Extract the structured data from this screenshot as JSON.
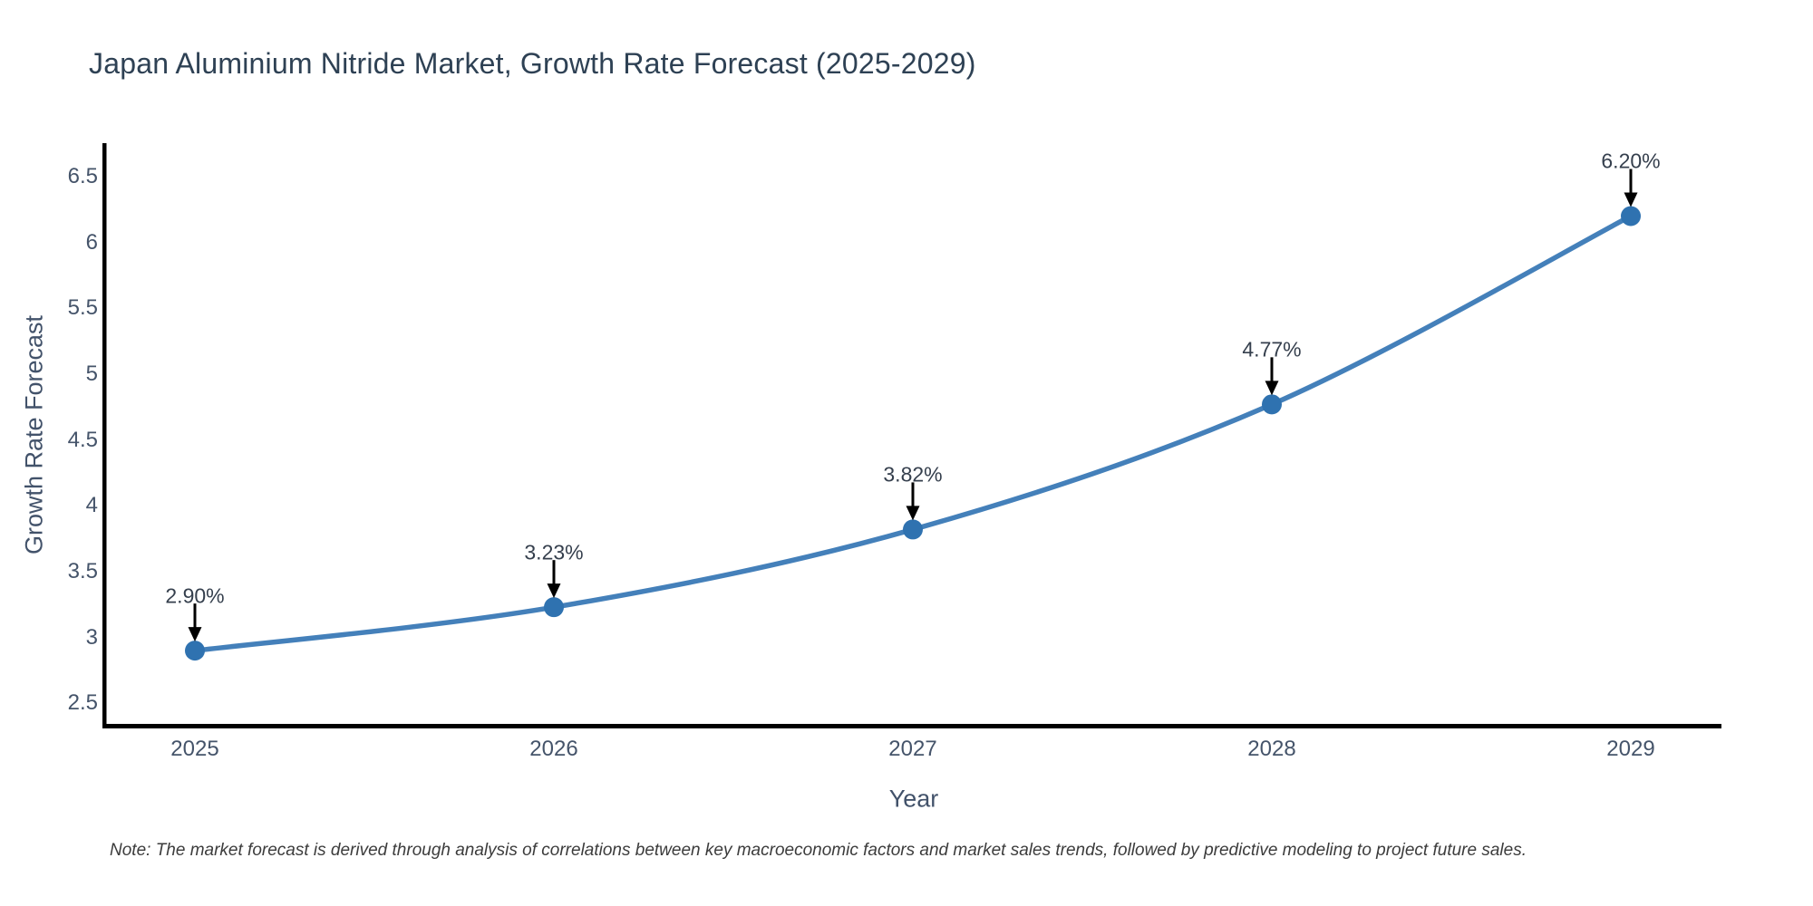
{
  "header": {
    "title": "Japan Aluminium Nitride Market, Growth Rate Forecast (2025-2029)"
  },
  "footer": {
    "note": "Note: The market forecast is derived through analysis of correlations between key macroeconomic factors and market sales trends, followed by predictive modeling to project future sales."
  },
  "chart_data": {
    "type": "line",
    "title": "Japan Aluminium Nitride Market, Growth Rate Forecast (2025-2029)",
    "xlabel": "Year",
    "ylabel": "Growth Rate Forecast",
    "x": [
      2025,
      2026,
      2027,
      2028,
      2029
    ],
    "series": [
      {
        "name": "Growth Rate Forecast",
        "values": [
          2.9,
          3.23,
          3.82,
          4.77,
          6.2
        ]
      }
    ],
    "point_labels": [
      "2.90%",
      "3.23%",
      "3.82%",
      "4.77%",
      "6.20%"
    ],
    "x_tick_labels": [
      "2025",
      "2026",
      "2027",
      "2028",
      "2029"
    ],
    "y_ticks": [
      2.5,
      3,
      3.5,
      4,
      4.5,
      5,
      5.5,
      6,
      6.5
    ],
    "y_tick_labels": [
      "2.5",
      "3",
      "3.5",
      "4",
      "4.5",
      "5",
      "5.5",
      "6",
      "6.5"
    ],
    "xlim": [
      2024.75,
      2029.25
    ],
    "ylim": [
      2.33,
      6.74
    ],
    "grid": false,
    "legend_position": "none",
    "line_shape": "spline",
    "colors": {
      "line": "#4480ba",
      "marker": "#2f72b0",
      "arrow": "#000000",
      "axis": "#000000",
      "tick_text": "#45546a",
      "title_text": "#2e4154",
      "annotation_text": "#353f4d",
      "note_text": "#3c3c3c"
    }
  }
}
